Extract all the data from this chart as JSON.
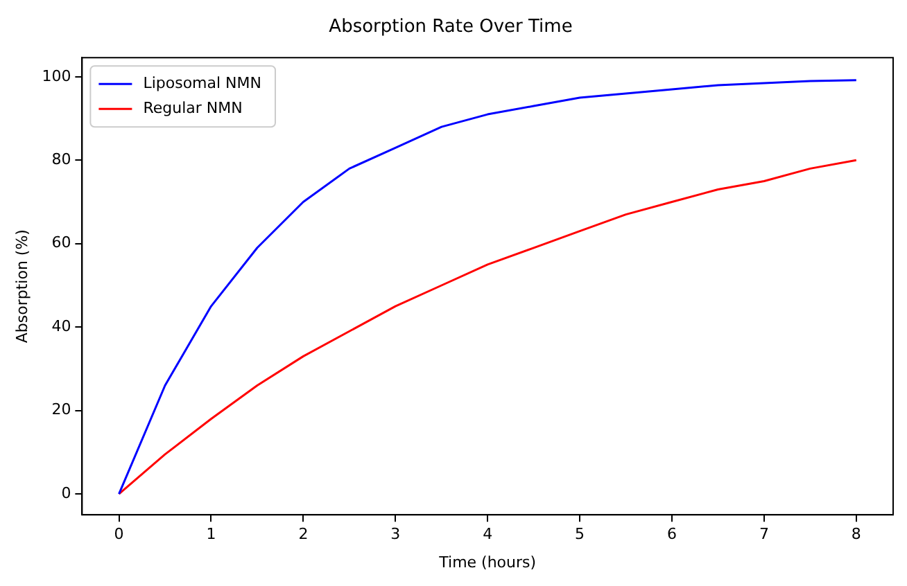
{
  "chart_data": {
    "type": "line",
    "title": "Absorption Rate Over Time",
    "xlabel": "Time (hours)",
    "ylabel": "Absorption (%)",
    "x": [
      0,
      0.5,
      1,
      1.5,
      2,
      2.5,
      3,
      3.5,
      4,
      4.5,
      5,
      5.5,
      6,
      6.5,
      7,
      7.5,
      8
    ],
    "series": [
      {
        "name": "Liposomal NMN",
        "color": "#0000ff",
        "values": [
          0,
          26,
          45,
          59,
          70,
          78,
          83,
          88,
          91,
          93,
          95,
          96,
          97,
          98,
          98.5,
          99,
          99.2
        ]
      },
      {
        "name": "Regular NMN",
        "color": "#ff0000",
        "values": [
          0,
          9.5,
          18,
          26,
          33,
          39,
          45,
          50,
          55,
          59,
          63,
          67,
          70,
          73,
          75,
          78,
          80
        ]
      }
    ],
    "xlim": [
      -0.4,
      8.4
    ],
    "ylim": [
      -5,
      104.6
    ],
    "xticks": [
      0,
      1,
      2,
      3,
      4,
      5,
      6,
      7,
      8
    ],
    "yticks": [
      0,
      20,
      40,
      60,
      80,
      100
    ],
    "grid": false,
    "legend": "top left",
    "marker": "none",
    "line_style": "solid"
  }
}
